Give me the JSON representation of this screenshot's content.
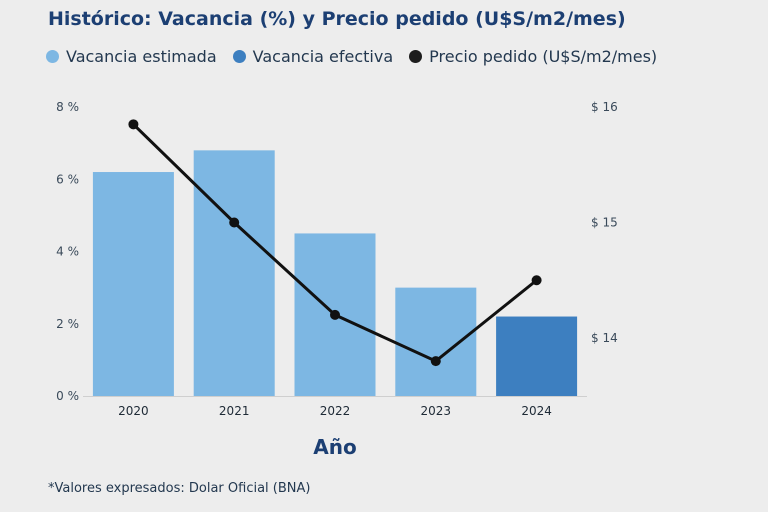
{
  "chart_data": {
    "type": "bar+line",
    "title": "Histórico:  Vacancia (%) y Precio pedido (U$S/m2/mes)",
    "xlabel": "Año",
    "categories": [
      "2020",
      "2021",
      "2022",
      "2023",
      "2024"
    ],
    "bars": {
      "values": [
        6.2,
        6.8,
        4.5,
        3.0,
        2.2
      ],
      "types": [
        "estimada",
        "estimada",
        "estimada",
        "estimada",
        "efectiva"
      ],
      "ylim": [
        0,
        8
      ],
      "yticks": [
        0,
        2,
        4,
        6,
        8
      ],
      "ytick_labels": [
        "0 %",
        "2 %",
        "4 %",
        "6 %",
        "8 %"
      ]
    },
    "line": {
      "name": "Precio pedido (U$S/m2/mes)",
      "values": [
        15.85,
        15.0,
        14.2,
        13.8,
        14.5
      ],
      "ylim": [
        13.5,
        16
      ],
      "yticks": [
        14,
        15,
        16
      ],
      "ytick_labels": [
        "$ 14",
        "$ 15",
        "$ 16"
      ]
    },
    "legend": [
      {
        "label": "Vacancia estimada",
        "color": "#7db7e3"
      },
      {
        "label": "Vacancia efectiva",
        "color": "#3d7fc0"
      },
      {
        "label": "Precio pedido (U$S/m2/mes)",
        "color": "#1d1d1d"
      }
    ],
    "colors": {
      "estimada": "#7db7e3",
      "efectiva": "#3d7fc0",
      "line": "#111111"
    },
    "grid": false,
    "legend_position": "top-left",
    "footnote": "*Valores expresados: Dolar Oficial (BNA)"
  }
}
